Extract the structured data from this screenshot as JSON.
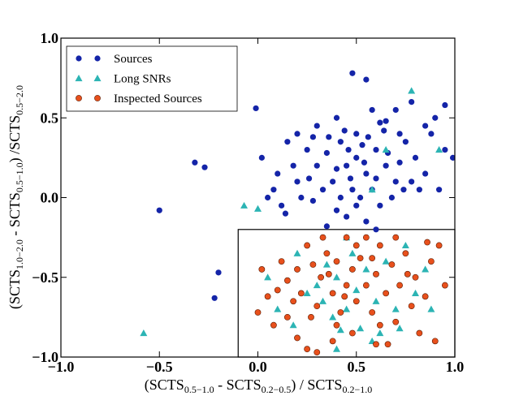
{
  "chart_data": {
    "type": "scatter",
    "xlabel": [
      "(SCTS",
      "0.5−1.0",
      " - SCTS",
      "0.2−0.5",
      ") / SCTS",
      "0.2−1.0"
    ],
    "ylabel": [
      "(SCTS",
      "1.0−2.0",
      " - SCTS",
      "0.5−1.0",
      ") /SCTS",
      "0.5−2.0"
    ],
    "xlim": [
      -1.0,
      1.0
    ],
    "ylim": [
      -1.0,
      1.0
    ],
    "xticks": [
      {
        "value": -1.0,
        "label": "−1.0"
      },
      {
        "value": -0.5,
        "label": "−0.5"
      },
      {
        "value": 0.0,
        "label": "0.0"
      },
      {
        "value": 0.5,
        "label": "0.5"
      },
      {
        "value": 1.0,
        "label": "1.0"
      }
    ],
    "yticks": [
      {
        "value": -1.0,
        "label": "−1.0"
      },
      {
        "value": -0.5,
        "label": "−0.5"
      },
      {
        "value": 0.0,
        "label": "0.0"
      },
      {
        "value": 0.5,
        "label": "0.5"
      },
      {
        "value": 1.0,
        "label": "1.0"
      }
    ],
    "legend": "upper left",
    "grid": false,
    "box": {
      "xlim": [
        -0.1,
        1.0
      ],
      "ylim": [
        -1.0,
        -0.2
      ]
    },
    "series": [
      {
        "name": "Sources",
        "color": "#1424a8",
        "marker": "circle",
        "x": [
          -0.5,
          -0.32,
          -0.27,
          -0.2,
          -0.22,
          -0.01,
          0.02,
          0.48,
          0.55,
          0.78,
          0.95,
          0.99,
          0.9,
          0.7,
          0.62,
          0.4,
          0.3,
          0.15,
          0.1,
          0.05,
          0.12,
          0.2,
          0.25,
          0.35,
          0.42,
          0.45,
          0.5,
          0.55,
          0.6,
          0.65,
          0.7,
          0.75,
          0.8,
          0.85,
          0.88,
          0.92,
          0.95,
          0.38,
          0.33,
          0.28,
          0.22,
          0.18,
          0.48,
          0.52,
          0.58,
          0.62,
          0.68,
          0.72,
          0.44,
          0.5,
          0.56,
          0.6,
          0.46,
          0.4,
          0.36,
          0.54,
          0.64,
          0.78,
          0.82,
          0.85,
          0.3,
          0.26,
          0.08,
          0.14,
          0.4,
          0.45,
          0.55,
          0.6,
          0.5,
          0.42,
          0.65,
          0.72,
          0.35,
          0.28,
          0.58,
          0.47,
          0.53,
          0.66,
          0.74,
          0.2
        ],
        "y": [
          -0.08,
          0.22,
          0.19,
          -0.47,
          -0.63,
          0.56,
          0.25,
          0.78,
          0.74,
          0.6,
          0.58,
          0.25,
          0.5,
          0.55,
          0.47,
          0.5,
          0.45,
          0.35,
          0.15,
          0.0,
          -0.05,
          0.1,
          0.3,
          0.28,
          0.35,
          0.2,
          0.25,
          0.15,
          0.3,
          0.2,
          0.1,
          0.35,
          0.25,
          0.15,
          0.4,
          0.05,
          0.3,
          0.1,
          0.05,
          -0.02,
          0.0,
          0.2,
          0.05,
          0.0,
          0.05,
          -0.05,
          0.0,
          0.22,
          0.42,
          0.4,
          0.38,
          0.12,
          0.3,
          0.18,
          0.38,
          0.22,
          0.42,
          0.1,
          0.05,
          0.45,
          0.2,
          0.12,
          0.05,
          -0.1,
          -0.08,
          -0.12,
          -0.15,
          -0.2,
          -0.05,
          0.0,
          0.48,
          0.4,
          -0.18,
          0.38,
          0.55,
          0.12,
          0.33,
          0.28,
          0.05,
          0.4
        ]
      },
      {
        "name": "Long SNRs",
        "color": "#2cb4b4",
        "marker": "triangle",
        "x": [
          -0.58,
          -0.07,
          0.78,
          0.92,
          0.65,
          0.58,
          0.0,
          0.45,
          0.2,
          0.35,
          0.4,
          0.3,
          0.5,
          0.55,
          0.6,
          0.7,
          0.45,
          0.38,
          0.52,
          0.42,
          0.62,
          0.72,
          0.8,
          0.85,
          0.25,
          0.05,
          0.1,
          0.18,
          0.58,
          0.65,
          0.75,
          0.88,
          0.33,
          0.48,
          0.4
        ],
        "y": [
          -0.85,
          -0.05,
          0.67,
          0.3,
          0.3,
          0.05,
          -0.07,
          -0.25,
          -0.35,
          -0.42,
          -0.5,
          -0.55,
          -0.58,
          -0.45,
          -0.65,
          -0.7,
          -0.7,
          -0.75,
          -0.82,
          -0.83,
          -0.85,
          -0.82,
          -0.6,
          -0.45,
          -0.6,
          -0.5,
          -0.7,
          -0.8,
          -0.9,
          -0.4,
          -0.3,
          -0.7,
          -0.65,
          -0.35,
          -0.95
        ]
      },
      {
        "name": "Inspected Sources",
        "color": "#e8501c",
        "marker": "circle",
        "x": [
          0.02,
          0.05,
          0.0,
          0.1,
          0.12,
          0.15,
          0.18,
          0.08,
          0.2,
          0.22,
          0.25,
          0.28,
          0.3,
          0.32,
          0.35,
          0.38,
          0.4,
          0.42,
          0.45,
          0.48,
          0.5,
          0.52,
          0.55,
          0.58,
          0.6,
          0.62,
          0.65,
          0.68,
          0.7,
          0.72,
          0.75,
          0.78,
          0.8,
          0.82,
          0.85,
          0.88,
          0.9,
          0.92,
          0.95,
          0.33,
          0.45,
          0.55,
          0.7,
          0.48,
          0.38,
          0.25,
          0.3,
          0.6,
          0.15,
          0.4,
          0.62,
          0.5,
          0.36,
          0.27,
          0.44,
          0.58,
          0.76,
          0.86,
          0.2,
          0.66
        ],
        "y": [
          -0.45,
          -0.62,
          -0.72,
          -0.58,
          -0.4,
          -0.52,
          -0.65,
          -0.8,
          -0.45,
          -0.6,
          -0.3,
          -0.42,
          -0.68,
          -0.5,
          -0.35,
          -0.6,
          -0.4,
          -0.72,
          -0.55,
          -0.45,
          -0.65,
          -0.38,
          -0.55,
          -0.72,
          -0.48,
          -0.3,
          -0.6,
          -0.42,
          -0.78,
          -0.55,
          -0.35,
          -0.68,
          -0.5,
          -0.85,
          -0.62,
          -0.4,
          -0.9,
          -0.3,
          -0.55,
          -0.25,
          -0.25,
          -0.25,
          -0.25,
          -0.85,
          -0.9,
          -0.95,
          -0.97,
          -0.92,
          -0.75,
          -0.8,
          -0.8,
          -0.3,
          -0.48,
          -0.75,
          -0.62,
          -0.38,
          -0.48,
          -0.28,
          -0.88,
          -0.92
        ]
      }
    ]
  }
}
